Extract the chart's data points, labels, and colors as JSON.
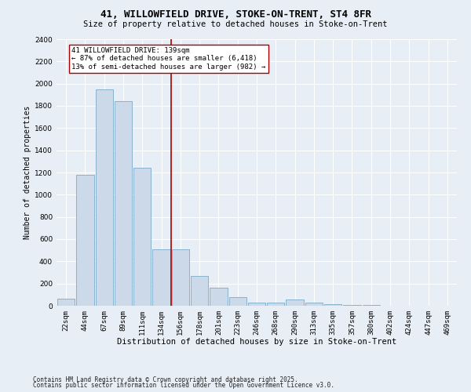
{
  "title1": "41, WILLOWFIELD DRIVE, STOKE-ON-TRENT, ST4 8FR",
  "title2": "Size of property relative to detached houses in Stoke-on-Trent",
  "xlabel": "Distribution of detached houses by size in Stoke-on-Trent",
  "ylabel": "Number of detached properties",
  "categories": [
    "22sqm",
    "44sqm",
    "67sqm",
    "89sqm",
    "111sqm",
    "134sqm",
    "156sqm",
    "178sqm",
    "201sqm",
    "223sqm",
    "246sqm",
    "268sqm",
    "290sqm",
    "313sqm",
    "335sqm",
    "357sqm",
    "380sqm",
    "402sqm",
    "424sqm",
    "447sqm",
    "469sqm"
  ],
  "values": [
    65,
    1180,
    1950,
    1840,
    1240,
    510,
    510,
    265,
    160,
    75,
    30,
    30,
    55,
    25,
    15,
    5,
    5,
    3,
    2,
    2,
    2
  ],
  "bar_color": "#ccd9e8",
  "bar_edge_color": "#7aaac8",
  "vline_x": 5.5,
  "vline_color": "#aa0000",
  "annotation_text": "41 WILLOWFIELD DRIVE: 139sqm\n← 87% of detached houses are smaller (6,418)\n13% of semi-detached houses are larger (982) →",
  "annotation_box_color": "#ffffff",
  "annotation_box_edge": "#aa0000",
  "bg_color": "#e8eef5",
  "grid_color": "#ffffff",
  "footer1": "Contains HM Land Registry data © Crown copyright and database right 2025.",
  "footer2": "Contains public sector information licensed under the Open Government Licence v3.0.",
  "ylim": [
    0,
    2400
  ],
  "yticks": [
    0,
    200,
    400,
    600,
    800,
    1000,
    1200,
    1400,
    1600,
    1800,
    2000,
    2200,
    2400
  ],
  "title1_fontsize": 9,
  "title2_fontsize": 7.5,
  "ylabel_fontsize": 7,
  "xlabel_fontsize": 7.5,
  "tick_fontsize": 6.5,
  "footer_fontsize": 5.5
}
